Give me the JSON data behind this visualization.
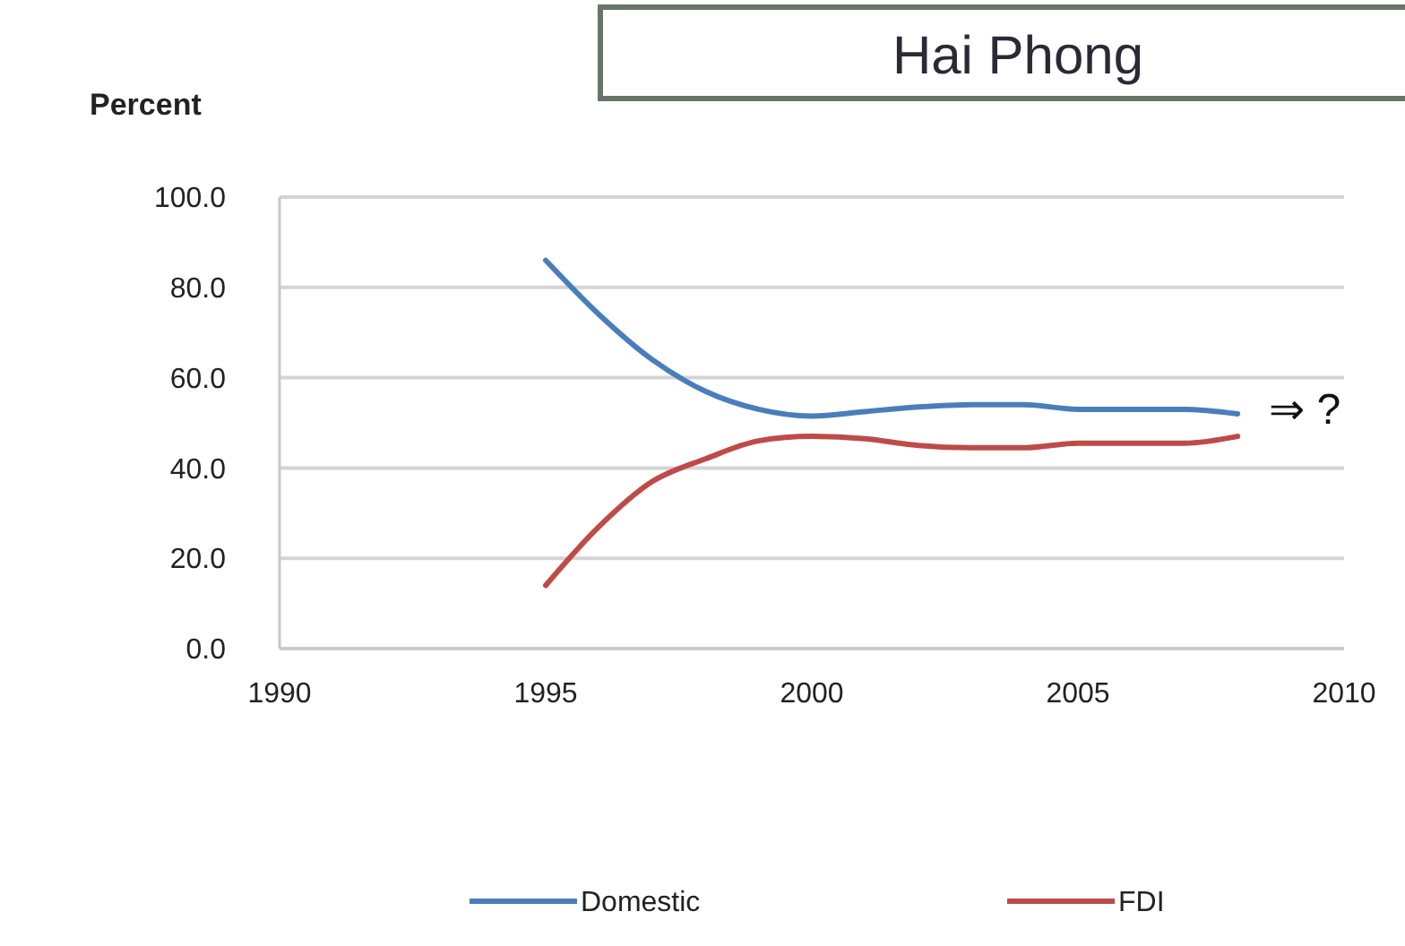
{
  "chart_data": {
    "type": "line",
    "title": "Hai Phong",
    "ylabel": "Percent",
    "x": [
      1995,
      1996,
      1997,
      1998,
      1999,
      2000,
      2001,
      2002,
      2003,
      2004,
      2005,
      2006,
      2007,
      2008
    ],
    "series": [
      {
        "name": "Domestic",
        "color": "#4a7ebb",
        "values": [
          86,
          74,
          64,
          57,
          53,
          51.5,
          52.5,
          53.5,
          54,
          54,
          53,
          53,
          53,
          52
        ]
      },
      {
        "name": "FDI",
        "color": "#be4b48",
        "values": [
          14,
          27,
          37,
          42,
          46,
          47,
          46.5,
          45,
          44.5,
          44.5,
          45.5,
          45.5,
          45.5,
          47
        ]
      }
    ],
    "annotations": [
      "⇒ ?"
    ],
    "xlim": [
      1990,
      2010
    ],
    "xticks": [
      1990,
      1995,
      2000,
      2005,
      2010
    ],
    "ylim": [
      0,
      100
    ],
    "yticks": [
      {
        "value": 0,
        "label": "0.0"
      },
      {
        "value": 20,
        "label": "20.0"
      },
      {
        "value": 40,
        "label": "40.0"
      },
      {
        "value": 60,
        "label": "60.0"
      },
      {
        "value": 80,
        "label": "80.0"
      },
      {
        "value": 100,
        "label": "100.0"
      }
    ],
    "grid": "y",
    "legend": "bottom",
    "marker": "none",
    "line_style": "solid"
  }
}
